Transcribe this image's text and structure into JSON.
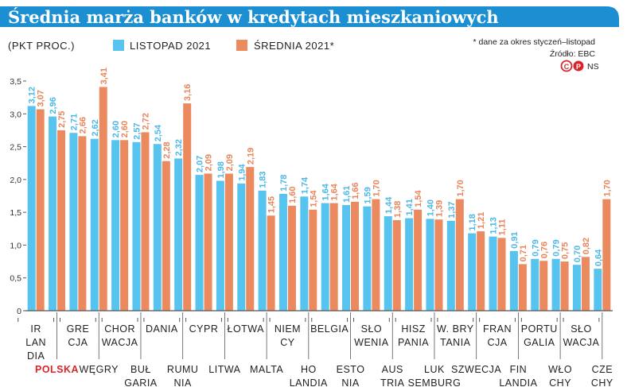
{
  "title": "Średnia marża banków w kredytach mieszkaniowych",
  "unit": "(PKT PROC.)",
  "note": "* dane za okres styczeń–listopad",
  "source": "Źródło: EBC",
  "logo": {
    "text": "©P",
    "tag": "NS"
  },
  "colors": {
    "blue": "#57c3ef",
    "orange": "#ec8a5f",
    "title_bg": "#1b8fd2",
    "highlight": "#d6262b"
  },
  "chart_data": {
    "type": "bar",
    "categories": [
      "Irlandia",
      "Polska",
      "Grecja",
      "Węgry",
      "Chorwacja",
      "Bułgaria",
      "Dania",
      "Rumunia",
      "Cypr",
      "Litwa",
      "Łotwa",
      "Malta",
      "Niemcy",
      "Holandia",
      "Belgia",
      "Estonia",
      "Słowenia",
      "Austria",
      "Hiszpania",
      "Luksemburg",
      "W. Brytania",
      "Szwecja",
      "Francja",
      "Finlandia",
      "Portugalia",
      "Włochy",
      "Słowacja",
      "Czechy"
    ],
    "category_labels": [
      [
        "IR",
        "LAN",
        "DIA"
      ],
      [
        "POLSKA"
      ],
      [
        "GRE",
        "CJA"
      ],
      [
        "WĘGRY"
      ],
      [
        "CHOR",
        "WACJA"
      ],
      [
        "BUŁ",
        "GARIA"
      ],
      [
        "DANIA"
      ],
      [
        "RUMU",
        "NIA"
      ],
      [
        "CYPR"
      ],
      [
        "LITWA"
      ],
      [
        "ŁOTWA"
      ],
      [
        "MALTA"
      ],
      [
        "NIEM",
        "CY"
      ],
      [
        "HO",
        "LANDIA"
      ],
      [
        "BELGIA"
      ],
      [
        "ESTO",
        "NIA"
      ],
      [
        "SŁO",
        "WENIA"
      ],
      [
        "AUS",
        "TRIA"
      ],
      [
        "HISZ",
        "PANIA"
      ],
      [
        "LUK",
        "SEMBURG"
      ],
      [
        "W. BRY",
        "TANIA"
      ],
      [
        "SZWECJA"
      ],
      [
        "FRAN",
        "CJA"
      ],
      [
        "FIN",
        "LANDIA"
      ],
      [
        "PORTU",
        "GALIA"
      ],
      [
        "WŁO",
        "CHY"
      ],
      [
        "SŁO",
        "WACJA"
      ],
      [
        "CZE",
        "CHY"
      ]
    ],
    "highlight": "Polska",
    "series": [
      {
        "name": "LISTOPAD 2021",
        "values": [
          3.12,
          2.96,
          2.71,
          2.62,
          2.6,
          2.57,
          2.54,
          2.32,
          2.07,
          1.98,
          1.94,
          1.83,
          1.78,
          1.74,
          1.64,
          1.61,
          1.59,
          1.44,
          1.41,
          1.4,
          1.37,
          1.18,
          1.13,
          0.91,
          0.79,
          0.79,
          0.7,
          0.64
        ]
      },
      {
        "name": "ŚREDNIA 2021*",
        "values": [
          3.07,
          2.75,
          2.66,
          3.41,
          2.6,
          2.72,
          2.28,
          3.16,
          2.09,
          2.09,
          2.19,
          1.45,
          1.6,
          1.54,
          1.64,
          1.66,
          1.7,
          1.38,
          1.54,
          1.39,
          1.7,
          1.21,
          1.11,
          0.71,
          0.76,
          0.75,
          0.82,
          1.7
        ]
      }
    ],
    "value_labels": [
      [
        "3,12",
        "2,96",
        "2,71",
        "2,62",
        "2,60",
        "2,57",
        "2,54",
        "2,32",
        "2,07",
        "1,98",
        "1,94",
        "1,83",
        "1,78",
        "1,74",
        "1,64",
        "1,61",
        "1,59",
        "1,44",
        "1,41",
        "1,40",
        "1,37",
        "1,18",
        "1,13",
        "0,91",
        "0,79",
        "0,79",
        "0,70",
        "0,64"
      ],
      [
        "3,07",
        "2,75",
        "2,66",
        "3,41",
        "2,60",
        "2,72",
        "2,28",
        "3,16",
        "2,09",
        "2,09",
        "2,19",
        "1,45",
        "1,60",
        "1,54",
        "1,64",
        "1,66",
        "1,70",
        "1,38",
        "1,54",
        "1,39",
        "1,70",
        "1,21",
        "1,11",
        "0,71",
        "0,76",
        "0,75",
        "0,82",
        "1,70"
      ]
    ],
    "ylim": [
      0,
      3.5
    ],
    "yticks": [
      0,
      0.5,
      1,
      1.5,
      2,
      2.5,
      3,
      3.5
    ],
    "ytick_labels": [
      "0",
      "0,5",
      "1,0",
      "1,5",
      "2,0",
      "2,5",
      "3,0",
      "3,5"
    ],
    "grid": false,
    "legend_position": "top"
  }
}
